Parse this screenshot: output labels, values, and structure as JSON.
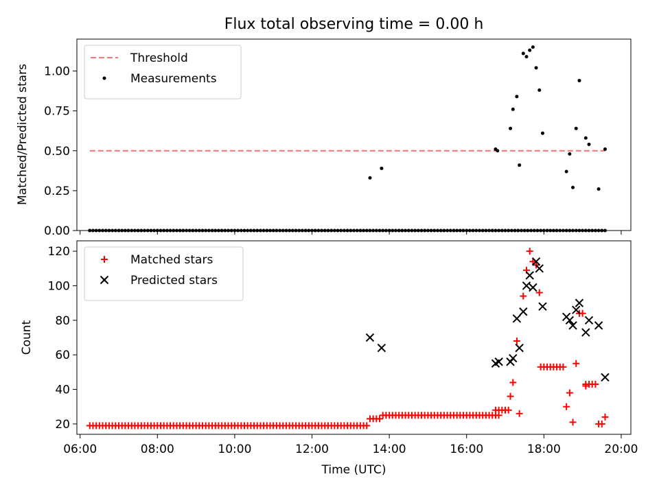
{
  "chart_data": [
    {
      "type": "scatter",
      "title": "Flux total observing time = 0.00 h",
      "xlabel": "",
      "ylabel": "Matched/Predicted stars",
      "xlim": [
        "05:55",
        "20:15"
      ],
      "ylim": [
        0,
        1.2
      ],
      "yticks": [
        0,
        0.25,
        0.5,
        0.75,
        1.0
      ],
      "ytick_labels": [
        "0.00",
        "0.25",
        "0.50",
        "0.75",
        "1.00"
      ],
      "xticks": [
        "06:00",
        "08:00",
        "10:00",
        "12:00",
        "14:00",
        "16:00",
        "18:00",
        "20:00"
      ],
      "grid": false,
      "legend_placement": "upper-left",
      "threshold": {
        "name": "Threshold",
        "color": "#f08080",
        "value": 0.5,
        "x_start": "06:15",
        "x_end": "19:35"
      },
      "series": [
        {
          "name": "Measurements",
          "color": "#000000",
          "zero_range": {
            "start": "06:15",
            "end": "19:35",
            "step_minutes": 5,
            "value": 0
          },
          "points": [
            {
              "x": "13:30",
              "y": 0.33
            },
            {
              "x": "13:48",
              "y": 0.39
            },
            {
              "x": "16:45",
              "y": 0.51
            },
            {
              "x": "16:48",
              "y": 0.5
            },
            {
              "x": "17:08",
              "y": 0.64
            },
            {
              "x": "17:12",
              "y": 0.76
            },
            {
              "x": "17:18",
              "y": 0.84
            },
            {
              "x": "17:22",
              "y": 0.41
            },
            {
              "x": "17:28",
              "y": 1.11
            },
            {
              "x": "17:33",
              "y": 1.09
            },
            {
              "x": "17:38",
              "y": 1.13
            },
            {
              "x": "17:43",
              "y": 1.15
            },
            {
              "x": "17:48",
              "y": 1.02
            },
            {
              "x": "17:53",
              "y": 0.88
            },
            {
              "x": "17:58",
              "y": 0.61
            },
            {
              "x": "18:35",
              "y": 0.37
            },
            {
              "x": "18:40",
              "y": 0.48
            },
            {
              "x": "18:45",
              "y": 0.27
            },
            {
              "x": "18:50",
              "y": 0.64
            },
            {
              "x": "18:55",
              "y": 0.94
            },
            {
              "x": "19:05",
              "y": 0.58
            },
            {
              "x": "19:10",
              "y": 0.54
            },
            {
              "x": "19:25",
              "y": 0.26
            },
            {
              "x": "19:35",
              "y": 0.51
            }
          ]
        }
      ]
    },
    {
      "type": "scatter",
      "title": "",
      "xlabel": "Time (UTC)",
      "ylabel": "Count",
      "xlim": [
        "05:55",
        "20:15"
      ],
      "ylim": [
        14,
        126
      ],
      "yticks": [
        20,
        40,
        60,
        80,
        100,
        120
      ],
      "xticks": [
        "06:00",
        "08:00",
        "10:00",
        "12:00",
        "14:00",
        "16:00",
        "18:00",
        "20:00"
      ],
      "grid": false,
      "legend_placement": "upper-left",
      "series": [
        {
          "name": "Matched stars",
          "color": "#ff0000",
          "marker": "plus",
          "baseline_runs": [
            {
              "start": "06:15",
              "end": "13:25",
              "step_minutes": 5,
              "value": 19
            },
            {
              "start": "13:30",
              "end": "13:45",
              "step_minutes": 5,
              "value": 23
            },
            {
              "start": "13:50",
              "end": "16:50",
              "step_minutes": 5,
              "value": 25
            },
            {
              "start": "16:45",
              "end": "17:05",
              "step_minutes": 5,
              "value": 28
            },
            {
              "start": "17:55",
              "end": "18:30",
              "step_minutes": 5,
              "value": 53
            },
            {
              "start": "19:05",
              "end": "19:20",
              "step_minutes": 5,
              "value": 43
            }
          ],
          "points": [
            {
              "x": "17:08",
              "y": 36
            },
            {
              "x": "17:12",
              "y": 44
            },
            {
              "x": "17:18",
              "y": 68
            },
            {
              "x": "17:22",
              "y": 26
            },
            {
              "x": "17:28",
              "y": 94
            },
            {
              "x": "17:33",
              "y": 109
            },
            {
              "x": "17:38",
              "y": 120
            },
            {
              "x": "17:43",
              "y": 114
            },
            {
              "x": "17:48",
              "y": 112
            },
            {
              "x": "17:53",
              "y": 96
            },
            {
              "x": "18:35",
              "y": 30
            },
            {
              "x": "18:40",
              "y": 38
            },
            {
              "x": "18:45",
              "y": 21
            },
            {
              "x": "18:50",
              "y": 55
            },
            {
              "x": "18:55",
              "y": 84
            },
            {
              "x": "19:00",
              "y": 84
            },
            {
              "x": "19:05",
              "y": 42
            },
            {
              "x": "19:25",
              "y": 20
            },
            {
              "x": "19:30",
              "y": 20
            },
            {
              "x": "19:35",
              "y": 24
            }
          ]
        },
        {
          "name": "Predicted stars",
          "color": "#000000",
          "marker": "x",
          "points": [
            {
              "x": "13:30",
              "y": 70
            },
            {
              "x": "13:48",
              "y": 64
            },
            {
              "x": "16:45",
              "y": 55
            },
            {
              "x": "16:50",
              "y": 56
            },
            {
              "x": "17:08",
              "y": 56
            },
            {
              "x": "17:12",
              "y": 58
            },
            {
              "x": "17:18",
              "y": 81
            },
            {
              "x": "17:22",
              "y": 64
            },
            {
              "x": "17:28",
              "y": 85
            },
            {
              "x": "17:33",
              "y": 100
            },
            {
              "x": "17:38",
              "y": 106
            },
            {
              "x": "17:43",
              "y": 99
            },
            {
              "x": "17:48",
              "y": 114
            },
            {
              "x": "17:53",
              "y": 110
            },
            {
              "x": "17:58",
              "y": 88
            },
            {
              "x": "18:35",
              "y": 82
            },
            {
              "x": "18:40",
              "y": 80
            },
            {
              "x": "18:45",
              "y": 77
            },
            {
              "x": "18:50",
              "y": 86
            },
            {
              "x": "18:55",
              "y": 90
            },
            {
              "x": "19:05",
              "y": 73
            },
            {
              "x": "19:10",
              "y": 80
            },
            {
              "x": "19:25",
              "y": 77
            },
            {
              "x": "19:35",
              "y": 47
            }
          ]
        }
      ]
    }
  ]
}
